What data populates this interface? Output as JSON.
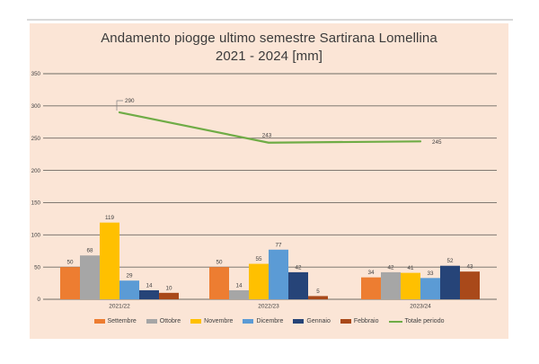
{
  "chart": {
    "background": "#FBE5D6",
    "title_line1": "Andamento piogge ultimo semestre Sartirana Lomellina",
    "title_line2": "2021 - 2024 [mm]"
  },
  "chart_data": {
    "type": "combo",
    "title": "Andamento piogge ultimo semestre Sartirana Lomellina 2021 - 2024 [mm]",
    "categories": [
      "2021/22",
      "2022/23",
      "2023/24"
    ],
    "series": [
      {
        "name": "Settembre",
        "type": "bar",
        "color": "#ED7D31",
        "values": [
          50,
          50,
          34
        ]
      },
      {
        "name": "Ottobre",
        "type": "bar",
        "color": "#A6A6A6",
        "values": [
          68,
          14,
          42
        ]
      },
      {
        "name": "Novembre",
        "type": "bar",
        "color": "#FFC000",
        "values": [
          119,
          55,
          41
        ]
      },
      {
        "name": "Dicembre",
        "type": "bar",
        "color": "#5B9BD5",
        "values": [
          29,
          77,
          33
        ]
      },
      {
        "name": "Gennaio",
        "type": "bar",
        "color": "#264478",
        "values": [
          14,
          42,
          52
        ]
      },
      {
        "name": "Febbraio",
        "type": "bar",
        "color": "#A9491A",
        "values": [
          10,
          5,
          43
        ]
      },
      {
        "name": "Totale periodo",
        "type": "line",
        "color": "#6FAC46",
        "values": [
          290,
          243,
          245
        ]
      }
    ],
    "ylim": [
      0,
      350
    ],
    "yticks": [
      0,
      50,
      100,
      150,
      200,
      250,
      300,
      350
    ],
    "grid": true,
    "data_labels": true,
    "legend_position": "bottom",
    "colors": {
      "plot_background": "#FBE5D6",
      "gridline": "#6E6A64",
      "text": "#404040",
      "leader_line": "#808080"
    }
  }
}
